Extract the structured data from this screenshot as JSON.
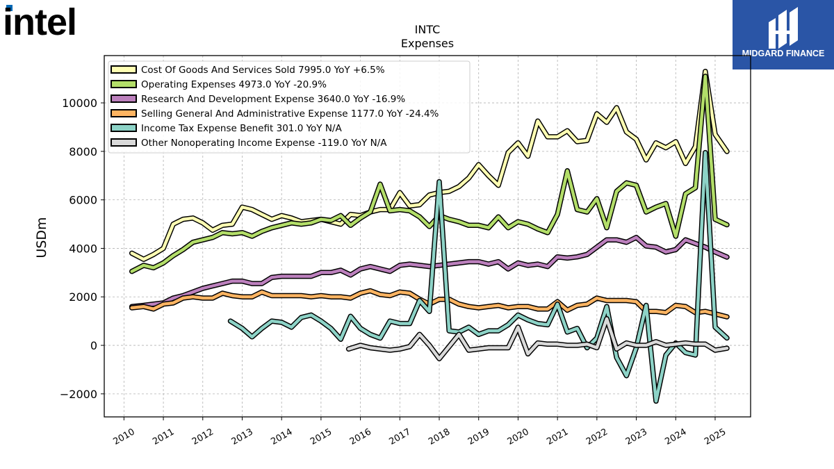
{
  "logos": {
    "left": {
      "text": "intel",
      "icon": "intel-logo",
      "color": "#000000",
      "accent": "#0068b5"
    },
    "right": {
      "text": "MIDGARD FINANCE",
      "icon": "midgard-finance-logo",
      "background": "#2a55a6"
    }
  },
  "chart_data": {
    "type": "line",
    "title": "INTC",
    "subtitle": "Expenses",
    "xlabel": "",
    "ylabel": "USDm",
    "xlim": [
      2009.5,
      2025.9
    ],
    "ylim": [
      -2950,
      11950
    ],
    "grid": true,
    "legend_position": "top-left",
    "x_ticks": [
      2010,
      2011,
      2012,
      2013,
      2014,
      2015,
      2016,
      2017,
      2018,
      2019,
      2020,
      2021,
      2022,
      2023,
      2024,
      2025
    ],
    "y_ticks": [
      -2000,
      0,
      2000,
      4000,
      6000,
      8000,
      10000
    ],
    "y_tick_labels": [
      "−2000",
      "0",
      "2000",
      "4000",
      "6000",
      "8000",
      "10000"
    ],
    "series": [
      {
        "name": "Cost Of Goods And Services Sold",
        "legend": "Cost Of Goods And Services Sold  7995.0 YoY +6.5%",
        "color": "#ffffb3",
        "x": [
          2010.2,
          2010.5,
          2010.75,
          2011.0,
          2011.25,
          2011.5,
          2011.75,
          2012.0,
          2012.25,
          2012.5,
          2012.75,
          2013.0,
          2013.25,
          2013.5,
          2013.75,
          2014.0,
          2014.25,
          2014.5,
          2014.75,
          2015.0,
          2015.25,
          2015.5,
          2015.75,
          2016.0,
          2016.25,
          2016.5,
          2016.75,
          2017.0,
          2017.25,
          2017.5,
          2017.75,
          2018.0,
          2018.25,
          2018.5,
          2018.75,
          2019.0,
          2019.25,
          2019.5,
          2019.75,
          2020.0,
          2020.25,
          2020.5,
          2020.75,
          2021.0,
          2021.25,
          2021.5,
          2021.75,
          2022.0,
          2022.25,
          2022.5,
          2022.75,
          2023.0,
          2023.25,
          2023.5,
          2023.75,
          2024.0,
          2024.25,
          2024.5,
          2024.75,
          2025.0,
          2025.3
        ],
        "values": [
          3800,
          3550,
          3750,
          4000,
          5000,
          5200,
          5250,
          5050,
          4750,
          4950,
          5000,
          5700,
          5600,
          5400,
          5200,
          5350,
          5250,
          5100,
          5150,
          5200,
          5100,
          5000,
          5400,
          5350,
          5500,
          5600,
          5600,
          6300,
          5750,
          5800,
          6200,
          6300,
          6350,
          6550,
          6900,
          7450,
          7000,
          6600,
          7950,
          8350,
          7800,
          9250,
          8600,
          8600,
          8850,
          8400,
          8450,
          9550,
          9200,
          9800,
          8800,
          8500,
          7650,
          8350,
          8150,
          8400,
          7500,
          8200,
          11300,
          8700,
          7995
        ]
      },
      {
        "name": "Operating Expenses",
        "legend": "Operating Expenses  4973.0 YoY -20.9%",
        "color": "#b3de69",
        "x": [
          2010.2,
          2010.5,
          2010.75,
          2011.0,
          2011.25,
          2011.5,
          2011.75,
          2012.0,
          2012.25,
          2012.5,
          2012.75,
          2013.0,
          2013.25,
          2013.5,
          2013.75,
          2014.0,
          2014.25,
          2014.5,
          2014.75,
          2015.0,
          2015.25,
          2015.5,
          2015.75,
          2016.0,
          2016.25,
          2016.5,
          2016.75,
          2017.0,
          2017.25,
          2017.5,
          2017.75,
          2018.0,
          2018.25,
          2018.5,
          2018.75,
          2019.0,
          2019.25,
          2019.5,
          2019.75,
          2020.0,
          2020.25,
          2020.5,
          2020.75,
          2021.0,
          2021.25,
          2021.5,
          2021.75,
          2022.0,
          2022.25,
          2022.5,
          2022.75,
          2023.0,
          2023.25,
          2023.5,
          2023.75,
          2024.0,
          2024.25,
          2024.5,
          2024.75,
          2025.0,
          2025.3
        ],
        "values": [
          3050,
          3300,
          3200,
          3400,
          3700,
          3950,
          4250,
          4350,
          4450,
          4650,
          4600,
          4650,
          4500,
          4700,
          4850,
          4950,
          5050,
          5000,
          5050,
          5200,
          5150,
          5350,
          4950,
          5250,
          5500,
          6650,
          5550,
          5600,
          5550,
          5300,
          4900,
          5350,
          5200,
          5100,
          4950,
          4950,
          4850,
          5300,
          4850,
          5100,
          5000,
          4800,
          4650,
          5400,
          7200,
          5600,
          5500,
          6050,
          4850,
          6350,
          6700,
          6600,
          5500,
          5700,
          5850,
          4500,
          6250,
          6500,
          11100,
          5200,
          4973
        ]
      },
      {
        "name": "Research And Development Expense",
        "legend": "Research And Development Expense  3640.0 YoY -16.9%",
        "color": "#bc80bd",
        "x": [
          2010.2,
          2010.5,
          2010.75,
          2011.0,
          2011.25,
          2011.5,
          2011.75,
          2012.0,
          2012.25,
          2012.5,
          2012.75,
          2013.0,
          2013.25,
          2013.5,
          2013.75,
          2014.0,
          2014.25,
          2014.5,
          2014.75,
          2015.0,
          2015.25,
          2015.5,
          2015.75,
          2016.0,
          2016.25,
          2016.5,
          2016.75,
          2017.0,
          2017.25,
          2017.5,
          2017.75,
          2018.0,
          2018.25,
          2018.5,
          2018.75,
          2019.0,
          2019.25,
          2019.5,
          2019.75,
          2020.0,
          2020.25,
          2020.5,
          2020.75,
          2021.0,
          2021.25,
          2021.5,
          2021.75,
          2022.0,
          2022.25,
          2022.5,
          2022.75,
          2023.0,
          2023.25,
          2023.5,
          2023.75,
          2024.0,
          2024.25,
          2024.5,
          2024.75,
          2025.0,
          2025.3
        ],
        "values": [
          1600,
          1650,
          1700,
          1750,
          1950,
          2050,
          2200,
          2350,
          2450,
          2550,
          2650,
          2650,
          2550,
          2550,
          2800,
          2850,
          2850,
          2850,
          2850,
          3000,
          3000,
          3100,
          2900,
          3150,
          3250,
          3150,
          3050,
          3300,
          3350,
          3300,
          3250,
          3300,
          3350,
          3400,
          3450,
          3450,
          3350,
          3450,
          3150,
          3400,
          3300,
          3350,
          3250,
          3650,
          3600,
          3650,
          3750,
          4050,
          4350,
          4350,
          4250,
          4450,
          4100,
          4050,
          3850,
          3950,
          4350,
          4200,
          4050,
          3850,
          3640
        ]
      },
      {
        "name": "Selling General And Administrative Expense",
        "legend": "Selling General And Administrative Expense  1177.0 YoY -24.4%",
        "color": "#fdb462",
        "x": [
          2010.2,
          2010.5,
          2010.75,
          2011.0,
          2011.25,
          2011.5,
          2011.75,
          2012.0,
          2012.25,
          2012.5,
          2012.75,
          2013.0,
          2013.25,
          2013.5,
          2013.75,
          2014.0,
          2014.25,
          2014.5,
          2014.75,
          2015.0,
          2015.25,
          2015.5,
          2015.75,
          2016.0,
          2016.25,
          2016.5,
          2016.75,
          2017.0,
          2017.25,
          2017.5,
          2017.75,
          2018.0,
          2018.25,
          2018.5,
          2018.75,
          2019.0,
          2019.25,
          2019.5,
          2019.75,
          2020.0,
          2020.25,
          2020.5,
          2020.75,
          2021.0,
          2021.25,
          2021.5,
          2021.75,
          2022.0,
          2022.25,
          2022.5,
          2022.75,
          2023.0,
          2023.25,
          2023.5,
          2023.75,
          2024.0,
          2024.25,
          2024.5,
          2024.75,
          2025.0,
          2025.3
        ],
        "values": [
          1550,
          1600,
          1500,
          1700,
          1750,
          1950,
          2000,
          1950,
          1950,
          2150,
          2050,
          2000,
          2000,
          2200,
          2050,
          2050,
          2050,
          2050,
          2000,
          2050,
          2000,
          2000,
          1950,
          2150,
          2250,
          2100,
          2050,
          2200,
          2150,
          1900,
          1700,
          1900,
          1900,
          1700,
          1600,
          1550,
          1600,
          1650,
          1550,
          1600,
          1600,
          1500,
          1500,
          1800,
          1450,
          1650,
          1700,
          1950,
          1850,
          1850,
          1850,
          1800,
          1400,
          1400,
          1350,
          1650,
          1600,
          1350,
          1400,
          1300,
          1177
        ]
      },
      {
        "name": "Income Tax Expense Benefit",
        "legend": "Income Tax Expense Benefit  301.0 YoY N/A",
        "color": "#8dd3c7",
        "x": [
          2012.7,
          2013.0,
          2013.25,
          2013.5,
          2013.75,
          2014.0,
          2014.25,
          2014.5,
          2014.75,
          2015.0,
          2015.25,
          2015.5,
          2015.75,
          2016.0,
          2016.25,
          2016.5,
          2016.75,
          2017.0,
          2017.25,
          2017.5,
          2017.75,
          2018.0,
          2018.25,
          2018.5,
          2018.75,
          2019.0,
          2019.25,
          2019.5,
          2019.75,
          2020.0,
          2020.25,
          2020.5,
          2020.75,
          2021.0,
          2021.25,
          2021.5,
          2021.75,
          2022.0,
          2022.25,
          2022.5,
          2022.75,
          2023.0,
          2023.25,
          2023.5,
          2023.75,
          2024.0,
          2024.25,
          2024.5,
          2024.75,
          2025.0,
          2025.3
        ],
        "values": [
          1000,
          700,
          350,
          700,
          1000,
          950,
          750,
          1150,
          1250,
          1000,
          700,
          250,
          1200,
          700,
          450,
          300,
          1000,
          900,
          900,
          1850,
          1400,
          6750,
          600,
          550,
          750,
          450,
          600,
          600,
          850,
          1250,
          1050,
          900,
          850,
          1700,
          550,
          700,
          -100,
          300,
          1600,
          -500,
          -1250,
          -100,
          1650,
          -2300,
          -400,
          100,
          -300,
          -400,
          7950,
          750,
          301
        ]
      },
      {
        "name": "Other Nonoperating Income Expense",
        "legend": "Other Nonoperating Income Expense  -119.0 YoY N/A",
        "color": "#d9d9d9",
        "x": [
          2015.7,
          2016.0,
          2016.25,
          2016.5,
          2016.75,
          2017.0,
          2017.25,
          2017.5,
          2017.75,
          2018.0,
          2018.25,
          2018.5,
          2018.75,
          2019.0,
          2019.25,
          2019.5,
          2019.75,
          2020.0,
          2020.25,
          2020.5,
          2020.75,
          2021.0,
          2021.25,
          2021.5,
          2021.75,
          2022.0,
          2022.25,
          2022.5,
          2022.75,
          2023.0,
          2023.25,
          2023.5,
          2023.75,
          2024.0,
          2024.25,
          2024.5,
          2024.75,
          2025.0,
          2025.3
        ],
        "values": [
          -150,
          0,
          -100,
          -150,
          -200,
          -150,
          -50,
          450,
          0,
          -550,
          -50,
          450,
          -200,
          -150,
          -100,
          -100,
          -100,
          750,
          -350,
          100,
          50,
          50,
          0,
          0,
          50,
          -100,
          1100,
          -150,
          100,
          0,
          0,
          150,
          0,
          50,
          100,
          50,
          50,
          -200,
          -119
        ]
      }
    ]
  }
}
